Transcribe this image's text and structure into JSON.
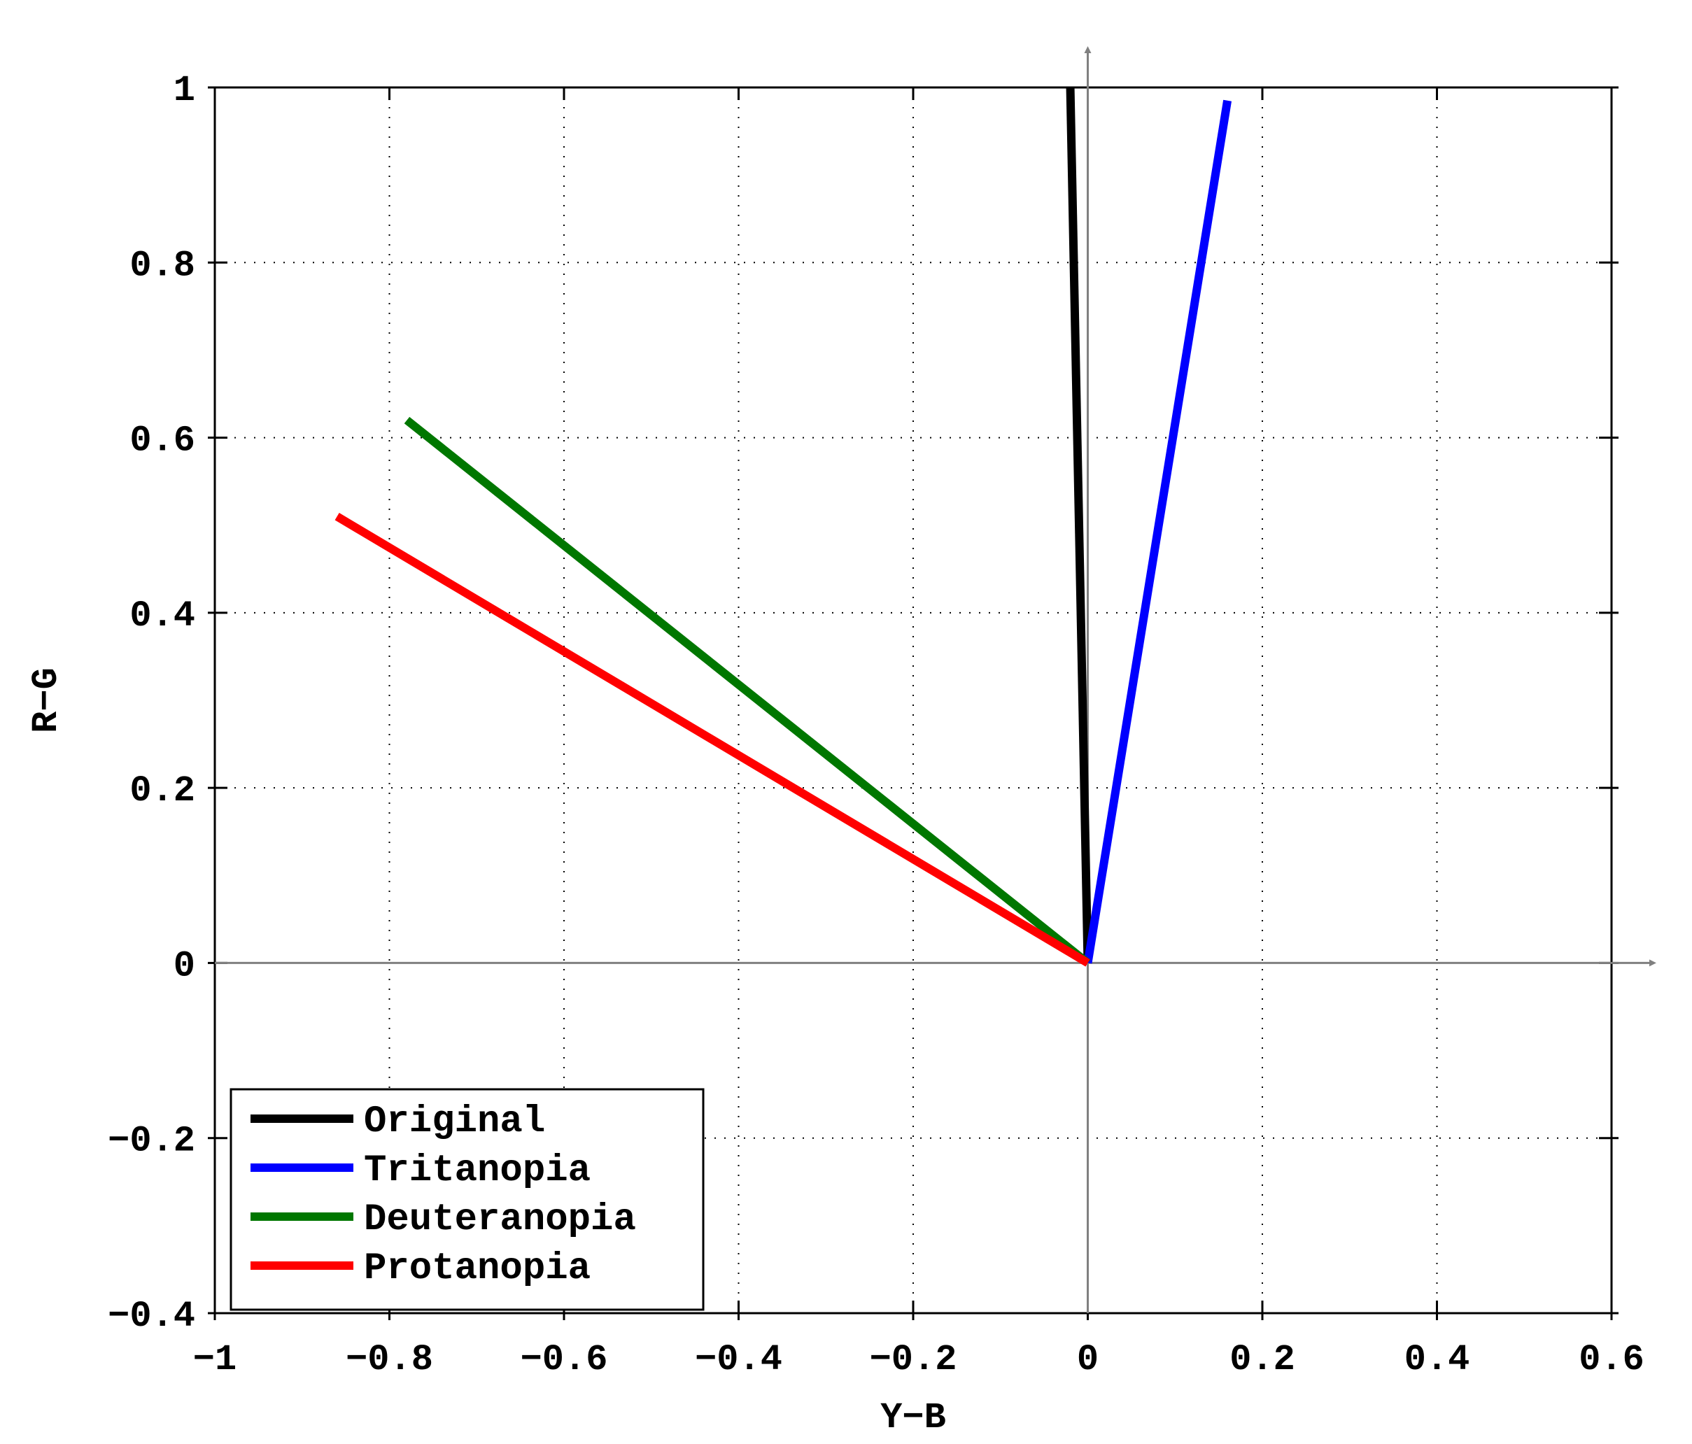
{
  "chart_data": {
    "type": "line",
    "title": "",
    "xlabel": "Y−B",
    "ylabel": "R−G",
    "xlim": [
      -1,
      0.6
    ],
    "ylim": [
      -0.4,
      1
    ],
    "xticks": [
      -1,
      -0.8,
      -0.6,
      -0.4,
      -0.2,
      0,
      0.2,
      0.4,
      0.6
    ],
    "yticks": [
      -0.4,
      -0.2,
      0,
      0.2,
      0.4,
      0.6,
      0.8,
      1
    ],
    "xtick_labels": [
      "−1",
      "−0.8",
      "−0.6",
      "−0.4",
      "−0.2",
      "0",
      "0.2",
      "0.4",
      "0.6"
    ],
    "ytick_labels": [
      "−0.4",
      "−0.2",
      "0",
      "0.2",
      "0.4",
      "0.6",
      "0.8",
      "1"
    ],
    "grid": true,
    "legend_position": "bottom-left",
    "series": [
      {
        "name": "Original",
        "color": "#000000",
        "x": [
          0,
          -0.02
        ],
        "y": [
          0,
          1.0
        ]
      },
      {
        "name": "Tritanopia",
        "color": "#0000ff",
        "x": [
          0,
          0.16
        ],
        "y": [
          0,
          0.985
        ]
      },
      {
        "name": "Deuteranopia",
        "color": "#007700",
        "x": [
          0,
          -0.78
        ],
        "y": [
          0,
          0.62
        ]
      },
      {
        "name": "Protanopia",
        "color": "#ff0000",
        "x": [
          0,
          -0.86
        ],
        "y": [
          0,
          0.51
        ]
      }
    ]
  }
}
